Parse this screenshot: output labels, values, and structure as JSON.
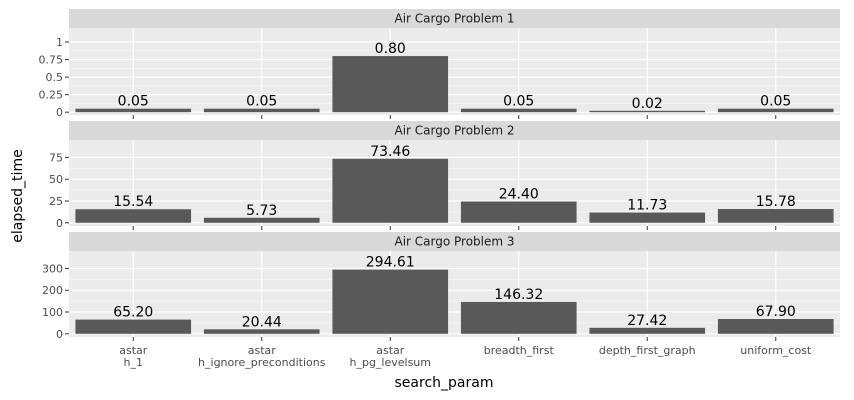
{
  "chart_data": {
    "type": "bar",
    "xlabel": "search_param",
    "ylabel": "elapsed_time",
    "categories": [
      [
        "astar",
        "h_1"
      ],
      [
        "astar",
        "h_ignore_preconditions"
      ],
      [
        "astar",
        "h_pg_levelsum"
      ],
      [
        "breadth_first"
      ],
      [
        "depth_first_graph"
      ],
      [
        "uniform_cost"
      ]
    ],
    "facets": [
      {
        "title": "Air Cargo Problem 1",
        "values": [
          0.05,
          0.05,
          0.8,
          0.05,
          0.02,
          0.05
        ],
        "labels": [
          "0.05",
          "0.05",
          "0.80",
          "0.05",
          "0.02",
          "0.05"
        ],
        "ylim": [
          -0.04,
          1.2
        ],
        "yticks": [
          0,
          0.25,
          0.5,
          0.75,
          1
        ],
        "ytick_labels": [
          "0",
          "0.25",
          "0.5",
          "0.75",
          "1"
        ]
      },
      {
        "title": "Air Cargo Problem 2",
        "values": [
          15.54,
          5.73,
          73.46,
          24.4,
          11.73,
          15.78
        ],
        "labels": [
          "15.54",
          "5.73",
          "73.46",
          "24.40",
          "11.73",
          "15.78"
        ],
        "ylim": [
          -3.7,
          95
        ],
        "yticks": [
          0,
          25,
          50,
          75
        ],
        "ytick_labels": [
          "0",
          "25",
          "50",
          "75"
        ]
      },
      {
        "title": "Air Cargo Problem 3",
        "values": [
          65.2,
          20.44,
          294.61,
          146.32,
          27.42,
          67.9
        ],
        "labels": [
          "65.20",
          "20.44",
          "294.61",
          "146.32",
          "27.42",
          "67.90"
        ],
        "ylim": [
          -14.7,
          380
        ],
        "yticks": [
          0,
          100,
          200,
          300
        ],
        "ytick_labels": [
          "0",
          "100",
          "200",
          "300"
        ]
      }
    ],
    "grid": true,
    "colors": {
      "bar": "#595959",
      "panel": "#ebebeb",
      "strip": "#d9d9d9",
      "grid": "#ffffff"
    }
  }
}
